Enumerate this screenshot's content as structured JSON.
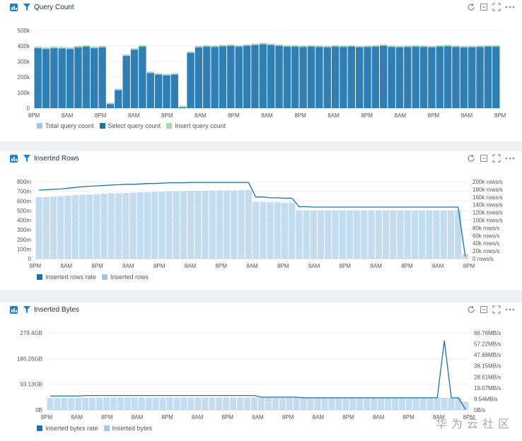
{
  "panels": [
    {
      "title": "Query Count",
      "left_ticks": [
        "500k",
        "400k",
        "300k",
        "200k",
        "100k",
        "0"
      ],
      "right_ticks": [],
      "x_ticks": [
        "8PM",
        "8AM",
        "8PM",
        "8AM",
        "8PM",
        "8AM",
        "8PM",
        "8AM",
        "8PM",
        "8AM",
        "8PM",
        "8AM",
        "8PM",
        "8AM",
        "8PM"
      ],
      "legend": [
        {
          "label": "Total query count",
          "color": "#a3c8e4"
        },
        {
          "label": "Select query count",
          "color": "#1c72ac"
        },
        {
          "label": "Insert query count",
          "color": "#a6dba0"
        }
      ]
    },
    {
      "title": "Inserted Rows",
      "left_ticks": [
        "800m",
        "700m",
        "600m",
        "500m",
        "400m",
        "300m",
        "200m",
        "100m",
        "0"
      ],
      "right_ticks": [
        "200k rows/s",
        "180k rows/s",
        "160k rows/s",
        "140k rows/s",
        "120k rows/s",
        "100k rows/s",
        "80k rows/s",
        "60k rows/s",
        "40k rows/s",
        "20k rows/s",
        "0 rows/s"
      ],
      "x_ticks": [
        "8PM",
        "8AM",
        "8PM",
        "8AM",
        "8PM",
        "8AM",
        "8PM",
        "8AM",
        "8PM",
        "8AM",
        "8PM",
        "8AM",
        "8PM",
        "8AM",
        "8PM"
      ],
      "legend": [
        {
          "label": "Inserted rows rate",
          "color": "#1c72ac"
        },
        {
          "label": "Inserted rows",
          "color": "#a3c8e4"
        }
      ]
    },
    {
      "title": "Inserted Bytes",
      "left_ticks": [
        "279.4GB",
        "186.26GB",
        "93.13GB",
        "0B"
      ],
      "right_ticks": [
        "66.76MB/s",
        "57.22MB/s",
        "47.68MB/s",
        "38.15MB/s",
        "28.61MB/s",
        "19.07MB/s",
        "9.54MB/s",
        "0B/s"
      ],
      "x_ticks": [
        "8PM",
        "8AM",
        "8PM",
        "8AM",
        "8PM",
        "8AM",
        "8PM",
        "8AM",
        "8PM",
        "8AM",
        "8PM",
        "8AM",
        "8PM",
        "8AM",
        "8PM"
      ],
      "legend": [
        {
          "label": "Inserted bytes rate",
          "color": "#1c72ac"
        },
        {
          "label": "Inserted bytes",
          "color": "#a3c8e4"
        }
      ]
    }
  ],
  "chart_data": [
    {
      "type": "bar",
      "title": "Query Count",
      "ylim": [
        0,
        500000
      ],
      "series": [
        {
          "name": "Total query count",
          "values": [
            390000,
            385000,
            390000,
            388000,
            385000,
            395000,
            400000,
            390000,
            395000,
            30000,
            120000,
            340000,
            380000,
            400000,
            230000,
            220000,
            215000,
            220000,
            10000,
            360000,
            395000,
            400000,
            398000,
            402000,
            405000,
            400000,
            405000,
            410000,
            415000,
            410000,
            405000,
            400000,
            400000,
            398000,
            400000,
            398000,
            396000,
            400000,
            398000,
            400000,
            396000,
            398000,
            400000,
            405000,
            398000,
            396000,
            398000,
            400000,
            398000,
            396000,
            400000,
            402000,
            398000,
            395000,
            396000,
            398000,
            400000,
            400000
          ]
        },
        {
          "name": "Select query count",
          "values": [
            385000,
            380000,
            385000,
            383000,
            380000,
            390000,
            395000,
            385000,
            390000,
            25000,
            115000,
            335000,
            375000,
            395000,
            225000,
            215000,
            210000,
            215000,
            5000,
            355000,
            390000,
            395000,
            393000,
            397000,
            400000,
            395000,
            400000,
            405000,
            410000,
            405000,
            400000,
            395000,
            395000,
            393000,
            395000,
            393000,
            391000,
            395000,
            393000,
            395000,
            391000,
            393000,
            395000,
            400000,
            393000,
            391000,
            393000,
            395000,
            393000,
            391000,
            395000,
            397000,
            393000,
            390000,
            391000,
            393000,
            395000,
            395000
          ]
        },
        {
          "name": "Insert query count",
          "values": [
            5000,
            5000,
            5000,
            5000,
            5000,
            5000,
            5000,
            5000,
            5000,
            5000,
            5000,
            5000,
            5000,
            5000,
            5000,
            5000,
            5000,
            5000,
            5000,
            5000,
            5000,
            5000,
            5000,
            5000,
            5000,
            5000,
            5000,
            5000,
            5000,
            5000,
            5000,
            5000,
            5000,
            5000,
            5000,
            5000,
            5000,
            5000,
            5000,
            5000,
            5000,
            5000,
            5000,
            5000,
            5000,
            5000,
            5000,
            5000,
            5000,
            5000,
            5000,
            5000,
            5000,
            5000,
            5000,
            5000,
            5000,
            5000
          ]
        }
      ]
    },
    {
      "type": "bar",
      "title": "Inserted Rows",
      "ylim": [
        0,
        800000000
      ],
      "y2lim": [
        0,
        200000
      ],
      "series": [
        {
          "name": "Inserted rows",
          "values": [
            640,
            640,
            645,
            650,
            655,
            660,
            665,
            665,
            670,
            675,
            680,
            680,
            682,
            685,
            690,
            690,
            692,
            695,
            700,
            700,
            702,
            705,
            705,
            706,
            707,
            708,
            708,
            709,
            710,
            712,
            590,
            590,
            585,
            585,
            580,
            580,
            500,
            500,
            500,
            500,
            500,
            500,
            500,
            500,
            500,
            500,
            500,
            500,
            500,
            500,
            500,
            500,
            500,
            500,
            500,
            500,
            500,
            500,
            500,
            50
          ]
        },
        {
          "name": "Inserted rows rate",
          "values": [
            178000,
            179000,
            180000,
            181000,
            183000,
            185000,
            187000,
            188000,
            189000,
            190000,
            191000,
            192000,
            193000,
            193000,
            194000,
            195000,
            195000,
            196000,
            197000,
            197000,
            197000,
            198000,
            198000,
            198000,
            198000,
            198000,
            198000,
            198000,
            198000,
            198000,
            160000,
            160000,
            158000,
            158000,
            157000,
            157000,
            135000,
            135000,
            134000,
            134000,
            134000,
            134000,
            134000,
            134000,
            134000,
            134000,
            134000,
            134000,
            134000,
            134000,
            134000,
            134000,
            134000,
            134000,
            134000,
            134000,
            134000,
            134000,
            134000,
            5000
          ]
        }
      ]
    },
    {
      "type": "bar",
      "title": "Inserted Bytes",
      "ylim": [
        0,
        279.4
      ],
      "y2lim": [
        0,
        66.76
      ],
      "series": [
        {
          "name": "Inserted bytes",
          "values": [
            44,
            44,
            44,
            44,
            44,
            44,
            45,
            45,
            45,
            45,
            45,
            45,
            45,
            45,
            45,
            45,
            45,
            45,
            45,
            45,
            45,
            45,
            45,
            45,
            45,
            45,
            45,
            45,
            45,
            45,
            44,
            44,
            44,
            44,
            44,
            44,
            44,
            44,
            44,
            44,
            44,
            44,
            44,
            44,
            44,
            44,
            44,
            44,
            44,
            44,
            44,
            44,
            44,
            44,
            44,
            44,
            44,
            44,
            44,
            30
          ]
        },
        {
          "name": "Inserted bytes rate",
          "values": [
            12,
            12,
            12,
            12,
            12,
            12.5,
            12.5,
            12.5,
            12.5,
            12.5,
            12.5,
            12.5,
            12.5,
            12.5,
            12.5,
            12.5,
            12.5,
            12.5,
            12.5,
            12.5,
            12.5,
            12.5,
            12.5,
            12.5,
            12.5,
            12.5,
            12.5,
            12.5,
            12.5,
            12.5,
            11,
            11,
            11,
            11,
            11,
            11,
            10.5,
            10.5,
            10.5,
            10.5,
            10.5,
            10.5,
            10.5,
            10.5,
            10.5,
            10.5,
            10.5,
            10.5,
            10.5,
            10.5,
            10.5,
            10.5,
            10.5,
            10.5,
            10.5,
            10.5,
            60,
            10.5,
            10.5,
            0.5
          ]
        }
      ]
    }
  ],
  "watermark": "华为云社区",
  "icon_names": [
    "chart-icon",
    "filter-icon",
    "refresh-icon",
    "minimize-icon",
    "fullscreen-icon",
    "more-icon"
  ]
}
